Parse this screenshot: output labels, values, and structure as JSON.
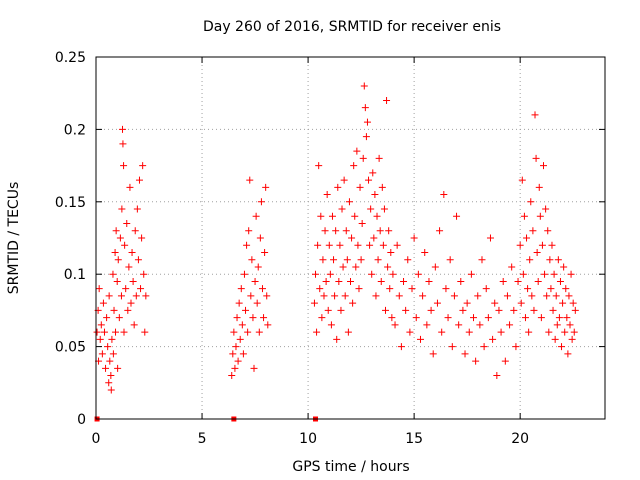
{
  "chart_data": {
    "type": "scatter",
    "title": "Day 260 of 2016, SRMTID for receiver enis",
    "xlabel": "GPS time / hours",
    "ylabel": "SRMTID / TECUs",
    "xlim": [
      0,
      24
    ],
    "ylim": [
      0,
      0.25
    ],
    "x_ticks": [
      0,
      5,
      10,
      15,
      20
    ],
    "x_tick_labels": [
      "0",
      "5",
      "10",
      "15",
      "20"
    ],
    "y_ticks": [
      0,
      0.05,
      0.1,
      0.15,
      0.2,
      0.25
    ],
    "y_tick_labels": [
      "0",
      "0.05",
      "0.1",
      "0.15",
      "0.2",
      "0.25"
    ],
    "grid": true,
    "marker": "plus",
    "color": "#ff0000",
    "series": [
      {
        "name": "SRMTID",
        "points": [
          [
            0.05,
            0.06
          ],
          [
            0.1,
            0.075
          ],
          [
            0.12,
            0.04
          ],
          [
            0.15,
            0.09
          ],
          [
            0.2,
            0.055
          ],
          [
            0.25,
            0.065
          ],
          [
            0.3,
            0.045
          ],
          [
            0.35,
            0.08
          ],
          [
            0.4,
            0.06
          ],
          [
            0.45,
            0.035
          ],
          [
            0.5,
            0.07
          ],
          [
            0.55,
            0.05
          ],
          [
            0.6,
            0.025
          ],
          [
            0.62,
            0.085
          ],
          [
            0.65,
            0.04
          ],
          [
            0.7,
            0.03
          ],
          [
            0.72,
            0.02
          ],
          [
            0.75,
            0.055
          ],
          [
            0.8,
            0.1
          ],
          [
            0.82,
            0.045
          ],
          [
            0.85,
            0.075
          ],
          [
            0.9,
            0.115
          ],
          [
            0.92,
            0.06
          ],
          [
            0.95,
            0.13
          ],
          [
            1.0,
            0.095
          ],
          [
            1.02,
            0.035
          ],
          [
            1.05,
            0.11
          ],
          [
            1.1,
            0.07
          ],
          [
            1.15,
            0.125
          ],
          [
            1.2,
            0.085
          ],
          [
            1.22,
            0.145
          ],
          [
            1.25,
            0.2
          ],
          [
            1.27,
            0.19
          ],
          [
            1.3,
            0.175
          ],
          [
            1.32,
            0.06
          ],
          [
            1.35,
            0.12
          ],
          [
            1.4,
            0.09
          ],
          [
            1.45,
            0.135
          ],
          [
            1.5,
            0.075
          ],
          [
            1.55,
            0.105
          ],
          [
            1.6,
            0.16
          ],
          [
            1.65,
            0.08
          ],
          [
            1.7,
            0.115
          ],
          [
            1.75,
            0.095
          ],
          [
            1.8,
            0.065
          ],
          [
            1.85,
            0.13
          ],
          [
            1.9,
            0.085
          ],
          [
            1.95,
            0.145
          ],
          [
            2.0,
            0.11
          ],
          [
            2.05,
            0.165
          ],
          [
            2.1,
            0.09
          ],
          [
            2.15,
            0.125
          ],
          [
            2.2,
            0.175
          ],
          [
            2.25,
            0.1
          ],
          [
            2.3,
            0.06
          ],
          [
            2.35,
            0.085
          ],
          [
            6.4,
            0.03
          ],
          [
            6.45,
            0.045
          ],
          [
            6.5,
            0.06
          ],
          [
            6.55,
            0.035
          ],
          [
            6.6,
            0.05
          ],
          [
            6.65,
            0.07
          ],
          [
            6.7,
            0.04
          ],
          [
            6.75,
            0.08
          ],
          [
            6.8,
            0.055
          ],
          [
            6.85,
            0.09
          ],
          [
            6.9,
            0.065
          ],
          [
            6.95,
            0.045
          ],
          [
            7.0,
            0.1
          ],
          [
            7.05,
            0.075
          ],
          [
            7.1,
            0.12
          ],
          [
            7.15,
            0.06
          ],
          [
            7.2,
            0.13
          ],
          [
            7.25,
            0.165
          ],
          [
            7.3,
            0.085
          ],
          [
            7.35,
            0.11
          ],
          [
            7.4,
            0.07
          ],
          [
            7.45,
            0.035
          ],
          [
            7.5,
            0.095
          ],
          [
            7.55,
            0.14
          ],
          [
            7.6,
            0.08
          ],
          [
            7.65,
            0.105
          ],
          [
            7.7,
            0.06
          ],
          [
            7.75,
            0.125
          ],
          [
            7.8,
            0.15
          ],
          [
            7.85,
            0.09
          ],
          [
            7.9,
            0.07
          ],
          [
            7.95,
            0.115
          ],
          [
            8.0,
            0.16
          ],
          [
            8.05,
            0.085
          ],
          [
            8.1,
            0.065
          ],
          [
            10.3,
            0.08
          ],
          [
            10.35,
            0.1
          ],
          [
            10.4,
            0.06
          ],
          [
            10.45,
            0.12
          ],
          [
            10.5,
            0.175
          ],
          [
            10.55,
            0.09
          ],
          [
            10.6,
            0.14
          ],
          [
            10.65,
            0.07
          ],
          [
            10.7,
            0.11
          ],
          [
            10.75,
            0.085
          ],
          [
            10.8,
            0.13
          ],
          [
            10.85,
            0.095
          ],
          [
            10.9,
            0.155
          ],
          [
            10.95,
            0.075
          ],
          [
            11.0,
            0.12
          ],
          [
            11.05,
            0.1
          ],
          [
            11.1,
            0.065
          ],
          [
            11.15,
            0.14
          ],
          [
            11.2,
            0.11
          ],
          [
            11.25,
            0.085
          ],
          [
            11.3,
            0.13
          ],
          [
            11.35,
            0.055
          ],
          [
            11.4,
            0.16
          ],
          [
            11.45,
            0.095
          ],
          [
            11.5,
            0.12
          ],
          [
            11.55,
            0.075
          ],
          [
            11.6,
            0.145
          ],
          [
            11.65,
            0.105
          ],
          [
            11.7,
            0.165
          ],
          [
            11.75,
            0.085
          ],
          [
            11.8,
            0.13
          ],
          [
            11.85,
            0.11
          ],
          [
            11.9,
            0.06
          ],
          [
            11.95,
            0.15
          ],
          [
            12.0,
            0.095
          ],
          [
            12.05,
            0.125
          ],
          [
            12.1,
            0.08
          ],
          [
            12.15,
            0.175
          ],
          [
            12.2,
            0.14
          ],
          [
            12.25,
            0.105
          ],
          [
            12.3,
            0.185
          ],
          [
            12.35,
            0.12
          ],
          [
            12.4,
            0.09
          ],
          [
            12.45,
            0.16
          ],
          [
            12.5,
            0.11
          ],
          [
            12.55,
            0.135
          ],
          [
            12.6,
            0.18
          ],
          [
            12.65,
            0.23
          ],
          [
            12.7,
            0.215
          ],
          [
            12.75,
            0.195
          ],
          [
            12.8,
            0.205
          ],
          [
            12.85,
            0.165
          ],
          [
            12.9,
            0.12
          ],
          [
            12.95,
            0.145
          ],
          [
            13.0,
            0.1
          ],
          [
            13.05,
            0.17
          ],
          [
            13.1,
            0.125
          ],
          [
            13.15,
            0.155
          ],
          [
            13.2,
            0.085
          ],
          [
            13.25,
            0.14
          ],
          [
            13.3,
            0.11
          ],
          [
            13.35,
            0.18
          ],
          [
            13.4,
            0.13
          ],
          [
            13.45,
            0.095
          ],
          [
            13.5,
            0.16
          ],
          [
            13.55,
            0.12
          ],
          [
            13.6,
            0.145
          ],
          [
            13.65,
            0.075
          ],
          [
            13.7,
            0.22
          ],
          [
            13.75,
            0.105
          ],
          [
            13.8,
            0.13
          ],
          [
            13.85,
            0.09
          ],
          [
            13.9,
            0.115
          ],
          [
            13.95,
            0.07
          ],
          [
            14.0,
            0.1
          ],
          [
            14.1,
            0.065
          ],
          [
            14.2,
            0.12
          ],
          [
            14.3,
            0.085
          ],
          [
            14.4,
            0.05
          ],
          [
            14.5,
            0.095
          ],
          [
            14.6,
            0.075
          ],
          [
            14.7,
            0.11
          ],
          [
            14.8,
            0.06
          ],
          [
            14.9,
            0.09
          ],
          [
            15.0,
            0.125
          ],
          [
            15.1,
            0.07
          ],
          [
            15.2,
            0.1
          ],
          [
            15.3,
            0.055
          ],
          [
            15.4,
            0.085
          ],
          [
            15.5,
            0.115
          ],
          [
            15.6,
            0.065
          ],
          [
            15.7,
            0.095
          ],
          [
            15.8,
            0.075
          ],
          [
            15.9,
            0.045
          ],
          [
            16.0,
            0.105
          ],
          [
            16.1,
            0.08
          ],
          [
            16.2,
            0.13
          ],
          [
            16.3,
            0.06
          ],
          [
            16.4,
            0.155
          ],
          [
            16.5,
            0.09
          ],
          [
            16.6,
            0.07
          ],
          [
            16.7,
            0.11
          ],
          [
            16.8,
            0.05
          ],
          [
            16.9,
            0.085
          ],
          [
            17.0,
            0.14
          ],
          [
            17.1,
            0.065
          ],
          [
            17.2,
            0.095
          ],
          [
            17.3,
            0.075
          ],
          [
            17.4,
            0.045
          ],
          [
            17.5,
            0.08
          ],
          [
            17.6,
            0.06
          ],
          [
            17.7,
            0.1
          ],
          [
            17.8,
            0.07
          ],
          [
            17.9,
            0.04
          ],
          [
            18.0,
            0.085
          ],
          [
            18.1,
            0.065
          ],
          [
            18.2,
            0.11
          ],
          [
            18.3,
            0.05
          ],
          [
            18.4,
            0.09
          ],
          [
            18.5,
            0.07
          ],
          [
            18.6,
            0.125
          ],
          [
            18.7,
            0.055
          ],
          [
            18.8,
            0.08
          ],
          [
            18.9,
            0.03
          ],
          [
            19.0,
            0.075
          ],
          [
            19.1,
            0.06
          ],
          [
            19.2,
            0.095
          ],
          [
            19.3,
            0.04
          ],
          [
            19.4,
            0.085
          ],
          [
            19.5,
            0.065
          ],
          [
            19.6,
            0.105
          ],
          [
            19.7,
            0.075
          ],
          [
            19.8,
            0.05
          ],
          [
            19.9,
            0.095
          ],
          [
            20.0,
            0.12
          ],
          [
            20.05,
            0.08
          ],
          [
            20.1,
            0.165
          ],
          [
            20.15,
            0.1
          ],
          [
            20.2,
            0.14
          ],
          [
            20.25,
            0.07
          ],
          [
            20.3,
            0.125
          ],
          [
            20.35,
            0.09
          ],
          [
            20.4,
            0.06
          ],
          [
            20.45,
            0.11
          ],
          [
            20.5,
            0.15
          ],
          [
            20.55,
            0.085
          ],
          [
            20.6,
            0.13
          ],
          [
            20.65,
            0.075
          ],
          [
            20.7,
            0.21
          ],
          [
            20.75,
            0.18
          ],
          [
            20.8,
            0.115
          ],
          [
            20.85,
            0.095
          ],
          [
            20.9,
            0.16
          ],
          [
            20.95,
            0.14
          ],
          [
            21.0,
            0.07
          ],
          [
            21.05,
            0.12
          ],
          [
            21.1,
            0.175
          ],
          [
            21.15,
            0.1
          ],
          [
            21.2,
            0.145
          ],
          [
            21.25,
            0.085
          ],
          [
            21.3,
            0.13
          ],
          [
            21.35,
            0.06
          ],
          [
            21.4,
            0.11
          ],
          [
            21.45,
            0.09
          ],
          [
            21.5,
            0.12
          ],
          [
            21.55,
            0.075
          ],
          [
            21.6,
            0.1
          ],
          [
            21.65,
            0.055
          ],
          [
            21.7,
            0.085
          ],
          [
            21.75,
            0.065
          ],
          [
            21.8,
            0.11
          ],
          [
            21.85,
            0.07
          ],
          [
            21.9,
            0.095
          ],
          [
            21.95,
            0.05
          ],
          [
            22.0,
            0.08
          ],
          [
            22.05,
            0.105
          ],
          [
            22.1,
            0.06
          ],
          [
            22.15,
            0.09
          ],
          [
            22.2,
            0.07
          ],
          [
            22.25,
            0.045
          ],
          [
            22.3,
            0.085
          ],
          [
            22.35,
            0.065
          ],
          [
            22.4,
            0.1
          ],
          [
            22.45,
            0.055
          ],
          [
            22.5,
            0.08
          ],
          [
            22.55,
            0.06
          ],
          [
            22.6,
            0.075
          ]
        ]
      },
      {
        "name": "zero markers",
        "marker": "square",
        "points": [
          [
            0.05,
            0
          ],
          [
            6.5,
            0
          ],
          [
            10.35,
            0
          ]
        ]
      }
    ]
  }
}
